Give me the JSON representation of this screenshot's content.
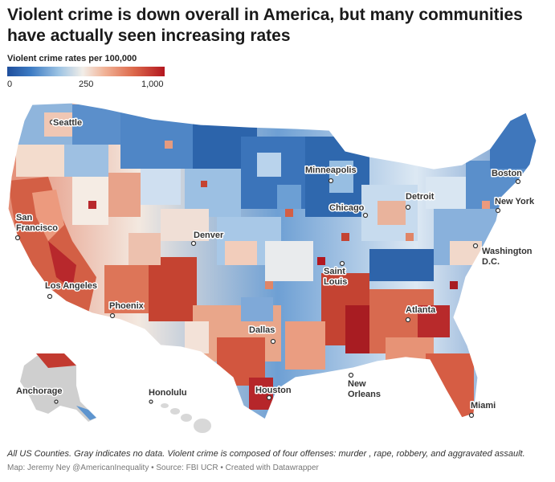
{
  "header": {
    "title": "Violent crime is down overall in America, but many communities have actually seen increasing rates"
  },
  "legend": {
    "title": "Violent crime rates per 100,000",
    "ticks": {
      "low": "0",
      "mid": "250",
      "high": "1,000"
    },
    "colors": {
      "low": "#1f4e9c",
      "mid": "#f2eee8",
      "high": "#b3171f",
      "no_data": "#cfcfcf"
    }
  },
  "cities": {
    "seattle": "Seattle",
    "minneapolis": "Minneapolis",
    "boston": "Boston",
    "detroit": "Detroit",
    "new_york": "New York",
    "chicago": "Chicago",
    "san_francisco_1": "San",
    "san_francisco_2": "Francisco",
    "denver": "Denver",
    "washington_1": "Washington",
    "washington_2": "D.C.",
    "saint_louis_1": "Saint",
    "saint_louis_2": "Louis",
    "los_angeles": "Los Angeles",
    "phoenix": "Phoenix",
    "atlanta": "Atlanta",
    "dallas": "Dallas",
    "anchorage": "Anchorage",
    "honolulu": "Honolulu",
    "houston": "Houston",
    "new_orleans_1": "New",
    "new_orleans_2": "Orleans",
    "miami": "Miami"
  },
  "footer": {
    "note": "All US Counties. Gray indicates no data. Violent crime is composed of four offenses: murder , rape, robbery, and aggravated assault.",
    "credits": "Map: Jeremy Ney @AmericanInequality • Source: FBI UCR • Created with Datawrapper"
  }
}
